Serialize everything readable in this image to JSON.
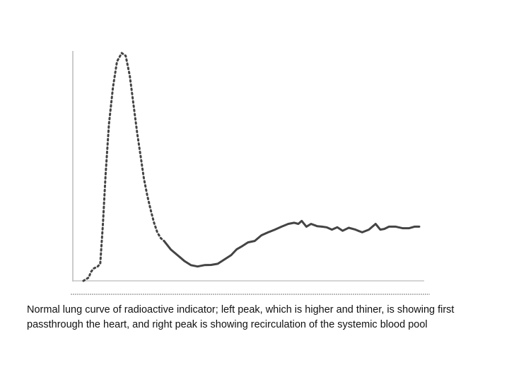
{
  "caption": "Normal lung curve of radioactive indicator; left peak, which is higher and thiner, is showing  first passthrough the heart, and right peak is showing recirculation of the systemic blood pool",
  "chart_data": {
    "type": "line",
    "title": "",
    "xlabel": "",
    "ylabel": "",
    "xlim": [
      0,
      100
    ],
    "ylim": [
      0,
      100
    ],
    "grid": false,
    "axis_color": "#bbbbbb",
    "series": [
      {
        "style": "dotted",
        "color": "#444444",
        "x": [
          0,
          1.6,
          2.2,
          3.0,
          4.2,
          5.0,
          5.8,
          6.6,
          7.6,
          8.8,
          10.0,
          11.4,
          12.6,
          13.8,
          15.0,
          16.0,
          17.0,
          18.0,
          19.0,
          20.0,
          21.0,
          22.0,
          23.0,
          24.0
        ],
        "y": [
          0,
          1.5,
          3.8,
          5.4,
          6.2,
          7.5,
          25.0,
          46.3,
          68.8,
          85.0,
          96.3,
          100.0,
          98.8,
          90.0,
          76.3,
          65.0,
          55.0,
          45.0,
          37.5,
          31.3,
          25.6,
          21.3,
          18.8,
          17.5
        ]
      },
      {
        "style": "solid",
        "color": "#444444",
        "x": [
          24.0,
          26.0,
          28.0,
          30.0,
          32.0,
          34.0,
          36.0,
          38.0,
          40.0,
          42.0,
          44.0,
          45.6,
          47.0,
          49.0,
          51.0,
          53.0,
          55.0,
          57.0,
          59.0,
          61.0,
          62.8,
          64.0,
          65.0,
          66.4,
          67.8,
          69.6,
          71.0,
          72.4,
          74.0,
          75.6,
          77.2,
          79.0,
          81.0,
          83.0,
          85.0,
          87.0,
          88.4,
          89.6,
          91.0,
          93.0,
          95.0,
          97.0,
          98.6,
          100.0
        ],
        "y": [
          17.5,
          13.8,
          11.3,
          8.8,
          6.9,
          6.3,
          6.9,
          7.0,
          7.5,
          9.4,
          11.3,
          13.8,
          15.0,
          16.9,
          17.5,
          20.0,
          21.3,
          22.5,
          23.8,
          25.0,
          25.5,
          25.0,
          26.3,
          23.8,
          25.0,
          24.0,
          23.8,
          23.5,
          22.5,
          23.5,
          22.0,
          23.3,
          22.5,
          21.3,
          22.5,
          25.0,
          22.5,
          22.8,
          23.8,
          23.8,
          23.1,
          23.1,
          23.8,
          23.8
        ]
      }
    ]
  }
}
